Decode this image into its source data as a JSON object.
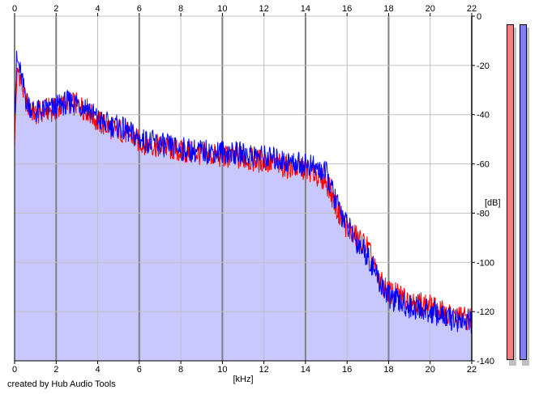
{
  "footer": {
    "credit": "created by Hub Audio Tools"
  },
  "chart_data": {
    "type": "line",
    "title": "",
    "xlabel": "[kHz]",
    "ylabel": "[dB]",
    "xlim": [
      0,
      22
    ],
    "ylim": [
      -140,
      0
    ],
    "x_ticks": [
      0,
      2,
      4,
      6,
      8,
      10,
      12,
      14,
      16,
      18,
      20,
      22
    ],
    "y_ticks": [
      0,
      -20,
      -40,
      -60,
      -80,
      -100,
      -120,
      -140
    ],
    "grid": true,
    "fill_color": "#c8c8ff",
    "series": [
      {
        "color": "#ff0000",
        "x": [
          0,
          0.1,
          0.2,
          0.4,
          0.6,
          1.0,
          1.5,
          2.0,
          2.5,
          3.0,
          3.5,
          4.0,
          4.5,
          5.0,
          5.5,
          6.0,
          7.0,
          8.0,
          9.0,
          10.0,
          11.0,
          12.0,
          13.0,
          14.0,
          14.5,
          15.0,
          15.5,
          16.0,
          16.5,
          17.0,
          17.5,
          18.0,
          19.0,
          20.0,
          21.0,
          22.0
        ],
        "values": [
          -53,
          -25,
          -22,
          -30,
          -36,
          -40,
          -38,
          -38,
          -35,
          -36,
          -38,
          -43,
          -45,
          -46,
          -48,
          -51,
          -53,
          -55,
          -56,
          -57,
          -58,
          -59,
          -61,
          -62,
          -64,
          -67,
          -78,
          -86,
          -90,
          -94,
          -107,
          -112,
          -115,
          -118,
          -122,
          -123
        ]
      },
      {
        "color": "#0000ff",
        "x": [
          0,
          0.1,
          0.2,
          0.4,
          0.6,
          1.0,
          1.5,
          2.0,
          2.5,
          3.0,
          3.5,
          4.0,
          4.5,
          5.0,
          5.5,
          6.0,
          7.0,
          8.0,
          9.0,
          10.0,
          11.0,
          12.0,
          13.0,
          14.0,
          14.5,
          15.0,
          15.5,
          16.0,
          16.5,
          17.0,
          17.5,
          18.0,
          19.0,
          20.0,
          21.0,
          22.0
        ],
        "values": [
          -40,
          -18,
          -20,
          -28,
          -35,
          -39,
          -38,
          -37,
          -35,
          -35,
          -37,
          -42,
          -44,
          -45,
          -47,
          -50,
          -52,
          -54,
          -55,
          -55,
          -56,
          -57,
          -59,
          -60,
          -62,
          -64,
          -76,
          -85,
          -92,
          -97,
          -107,
          -114,
          -118,
          -120,
          -123,
          -124
        ]
      }
    ]
  }
}
